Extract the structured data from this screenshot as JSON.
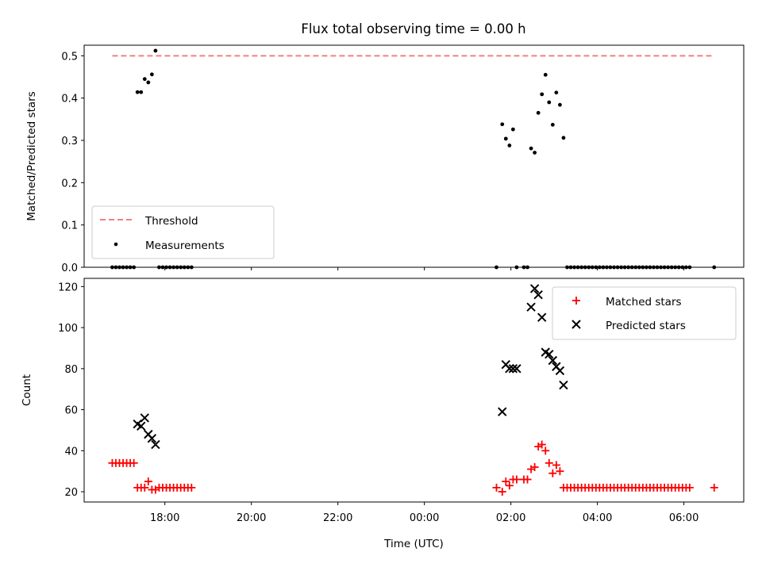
{
  "chart_data": [
    {
      "type": "scatter",
      "title": "Flux total observing time = 0.00 h",
      "xlabel": "",
      "ylabel": "Matched/Predicted stars",
      "ylim": [
        0,
        0.525
      ],
      "xlim": [
        "16:08",
        "07:23"
      ],
      "yticks": [
        "0.0",
        "0.1",
        "0.2",
        "0.3",
        "0.4",
        "0.5"
      ],
      "grid": false,
      "legend_position": "lower-left",
      "threshold": {
        "name": "Threshold",
        "value": 0.5,
        "x_start": "16:47",
        "x_end": "06:42",
        "color": "#f08080"
      },
      "series": [
        {
          "name": "Measurements",
          "color": "#000000",
          "points": [
            [
              "16:47",
              0
            ],
            [
              "16:52",
              0
            ],
            [
              "16:57",
              0
            ],
            [
              "17:02",
              0
            ],
            [
              "17:07",
              0
            ],
            [
              "17:12",
              0
            ],
            [
              "17:17",
              0
            ],
            [
              "17:22",
              0.414
            ],
            [
              "17:27",
              0.414
            ],
            [
              "17:32",
              0.445
            ],
            [
              "17:37",
              0.437
            ],
            [
              "17:42",
              0.456
            ],
            [
              "17:47",
              0.512
            ],
            [
              "17:52",
              0
            ],
            [
              "17:57",
              0
            ],
            [
              "18:02",
              0
            ],
            [
              "18:07",
              0
            ],
            [
              "18:12",
              0
            ],
            [
              "18:17",
              0
            ],
            [
              "18:22",
              0
            ],
            [
              "18:27",
              0
            ],
            [
              "18:32",
              0
            ],
            [
              "18:37",
              0
            ],
            [
              "01:40",
              0
            ],
            [
              "01:48",
              0.338
            ],
            [
              "01:53",
              0.304
            ],
            [
              "01:58",
              0.288
            ],
            [
              "02:03",
              0.326
            ],
            [
              "02:08",
              0
            ],
            [
              "02:18",
              0
            ],
            [
              "02:23",
              0
            ],
            [
              "02:28",
              0.281
            ],
            [
              "02:33",
              0.271
            ],
            [
              "02:38",
              0.365
            ],
            [
              "02:43",
              0.409
            ],
            [
              "02:48",
              0.455
            ],
            [
              "02:53",
              0.39
            ],
            [
              "02:58",
              0.337
            ],
            [
              "03:03",
              0.413
            ],
            [
              "03:08",
              0.384
            ],
            [
              "03:13",
              0.306
            ],
            [
              "03:18",
              0
            ],
            [
              "03:23",
              0
            ],
            [
              "03:28",
              0
            ],
            [
              "03:33",
              0
            ],
            [
              "03:38",
              0
            ],
            [
              "03:43",
              0
            ],
            [
              "03:48",
              0
            ],
            [
              "03:53",
              0
            ],
            [
              "03:58",
              0
            ],
            [
              "04:03",
              0
            ],
            [
              "04:08",
              0
            ],
            [
              "04:13",
              0
            ],
            [
              "04:18",
              0
            ],
            [
              "04:23",
              0
            ],
            [
              "04:28",
              0
            ],
            [
              "04:33",
              0
            ],
            [
              "04:38",
              0
            ],
            [
              "04:43",
              0
            ],
            [
              "04:48",
              0
            ],
            [
              "04:53",
              0
            ],
            [
              "04:58",
              0
            ],
            [
              "05:03",
              0
            ],
            [
              "05:08",
              0
            ],
            [
              "05:13",
              0
            ],
            [
              "05:18",
              0
            ],
            [
              "05:23",
              0
            ],
            [
              "05:28",
              0
            ],
            [
              "05:33",
              0
            ],
            [
              "05:38",
              0
            ],
            [
              "05:43",
              0
            ],
            [
              "05:48",
              0
            ],
            [
              "05:53",
              0
            ],
            [
              "05:58",
              0
            ],
            [
              "06:03",
              0
            ],
            [
              "06:08",
              0
            ],
            [
              "06:42",
              0
            ]
          ]
        }
      ]
    },
    {
      "type": "scatter",
      "title": "",
      "xlabel": "Time (UTC)",
      "ylabel": "Count",
      "ylim": [
        15,
        124
      ],
      "xlim": [
        "16:08",
        "07:23"
      ],
      "yticks": [
        "20",
        "40",
        "60",
        "80",
        "100",
        "120"
      ],
      "xticks": [
        "18:00",
        "20:00",
        "22:00",
        "00:00",
        "02:00",
        "04:00",
        "06:00"
      ],
      "grid": false,
      "legend_position": "upper-right",
      "series": [
        {
          "name": "Matched stars",
          "color": "#ff0000",
          "marker": "+",
          "points": [
            [
              "16:47",
              34
            ],
            [
              "16:52",
              34
            ],
            [
              "16:57",
              34
            ],
            [
              "17:02",
              34
            ],
            [
              "17:07",
              34
            ],
            [
              "17:12",
              34
            ],
            [
              "17:17",
              34
            ],
            [
              "17:22",
              22
            ],
            [
              "17:27",
              22
            ],
            [
              "17:32",
              22
            ],
            [
              "17:37",
              25
            ],
            [
              "17:42",
              21
            ],
            [
              "17:47",
              21
            ],
            [
              "17:52",
              22
            ],
            [
              "17:57",
              22
            ],
            [
              "18:02",
              22
            ],
            [
              "18:07",
              22
            ],
            [
              "18:12",
              22
            ],
            [
              "18:17",
              22
            ],
            [
              "18:22",
              22
            ],
            [
              "18:27",
              22
            ],
            [
              "18:32",
              22
            ],
            [
              "18:37",
              22
            ],
            [
              "01:40",
              22
            ],
            [
              "01:48",
              20
            ],
            [
              "01:53",
              25
            ],
            [
              "01:58",
              23
            ],
            [
              "02:03",
              26
            ],
            [
              "02:08",
              26
            ],
            [
              "02:18",
              26
            ],
            [
              "02:23",
              26
            ],
            [
              "02:28",
              31
            ],
            [
              "02:33",
              32
            ],
            [
              "02:38",
              42
            ],
            [
              "02:43",
              43
            ],
            [
              "02:48",
              40
            ],
            [
              "02:53",
              34
            ],
            [
              "02:58",
              29
            ],
            [
              "03:03",
              33
            ],
            [
              "03:08",
              30
            ],
            [
              "03:13",
              22
            ],
            [
              "03:18",
              22
            ],
            [
              "03:23",
              22
            ],
            [
              "03:28",
              22
            ],
            [
              "03:33",
              22
            ],
            [
              "03:38",
              22
            ],
            [
              "03:43",
              22
            ],
            [
              "03:48",
              22
            ],
            [
              "03:53",
              22
            ],
            [
              "03:58",
              22
            ],
            [
              "04:03",
              22
            ],
            [
              "04:08",
              22
            ],
            [
              "04:13",
              22
            ],
            [
              "04:18",
              22
            ],
            [
              "04:23",
              22
            ],
            [
              "04:28",
              22
            ],
            [
              "04:33",
              22
            ],
            [
              "04:38",
              22
            ],
            [
              "04:43",
              22
            ],
            [
              "04:48",
              22
            ],
            [
              "04:53",
              22
            ],
            [
              "04:58",
              22
            ],
            [
              "05:03",
              22
            ],
            [
              "05:08",
              22
            ],
            [
              "05:13",
              22
            ],
            [
              "05:18",
              22
            ],
            [
              "05:23",
              22
            ],
            [
              "05:28",
              22
            ],
            [
              "05:33",
              22
            ],
            [
              "05:38",
              22
            ],
            [
              "05:43",
              22
            ],
            [
              "05:48",
              22
            ],
            [
              "05:53",
              22
            ],
            [
              "05:58",
              22
            ],
            [
              "06:03",
              22
            ],
            [
              "06:08",
              22
            ],
            [
              "06:42",
              22
            ]
          ]
        },
        {
          "name": "Predicted stars",
          "color": "#000000",
          "marker": "x",
          "points": [
            [
              "17:22",
              53
            ],
            [
              "17:27",
              52
            ],
            [
              "17:32",
              56
            ],
            [
              "17:37",
              48
            ],
            [
              "17:42",
              46
            ],
            [
              "17:47",
              43
            ],
            [
              "01:48",
              59
            ],
            [
              "01:53",
              82
            ],
            [
              "01:58",
              80
            ],
            [
              "02:03",
              80
            ],
            [
              "02:08",
              80
            ],
            [
              "02:28",
              110
            ],
            [
              "02:33",
              119
            ],
            [
              "02:38",
              116
            ],
            [
              "02:43",
              105
            ],
            [
              "02:48",
              88
            ],
            [
              "02:53",
              87
            ],
            [
              "02:58",
              84
            ],
            [
              "03:03",
              81
            ],
            [
              "03:08",
              79
            ],
            [
              "03:13",
              72
            ]
          ]
        }
      ]
    }
  ]
}
